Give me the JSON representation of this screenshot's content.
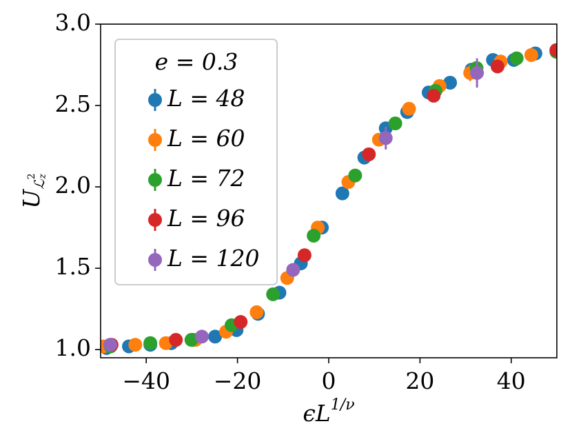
{
  "chart_data": {
    "type": "scatter",
    "xlabel": {
      "base": "ϵL",
      "sup": "1/ν"
    },
    "ylabel": {
      "base": "U",
      "sub": "ℒ",
      "sub_sup": "2",
      "sub_sub": "z"
    },
    "legend_title": "e = 0.3",
    "legend": "upper left",
    "xlim": [
      -50,
      50
    ],
    "ylim": [
      0.95,
      3.0
    ],
    "xticks": [
      {
        "value": -40,
        "label": "−40"
      },
      {
        "value": -20,
        "label": "−20"
      },
      0,
      20,
      40
    ],
    "yticks": [
      {
        "value": 1.0,
        "label": "1.0"
      },
      1.5,
      {
        "value": 2.0,
        "label": "2.0"
      },
      2.5,
      {
        "value": 3.0,
        "label": "3.0"
      }
    ],
    "series": [
      {
        "name": "L = 48",
        "color": "#1f77b4",
        "x": [
          -48.7,
          -43.8,
          -39.1,
          -34.5,
          -29.7,
          -24.9,
          -20.2,
          -15.5,
          -10.8,
          -6.1,
          -1.5,
          3.0,
          7.8,
          12.5,
          17.2,
          21.9,
          26.6,
          31.3,
          36.0,
          40.6,
          45.3,
          49.9
        ],
        "values": [
          1.01,
          1.02,
          1.03,
          1.04,
          1.06,
          1.08,
          1.12,
          1.22,
          1.35,
          1.53,
          1.75,
          1.96,
          2.18,
          2.36,
          2.46,
          2.58,
          2.64,
          2.72,
          2.78,
          2.78,
          2.82,
          2.84
        ],
        "errors": [
          0.01,
          0.01,
          0.01,
          0.01,
          0.01,
          0.01,
          0.01,
          0.01,
          0.01,
          0.01,
          0.01,
          0.01,
          0.01,
          0.01,
          0.01,
          0.01,
          0.01,
          0.01,
          0.04,
          0.01,
          0.01,
          0.01
        ]
      },
      {
        "name": "L = 60",
        "color": "#ff7f0e",
        "x": [
          -49.4,
          -42.4,
          -35.7,
          -29.2,
          -22.5,
          -15.8,
          -9.1,
          -2.4,
          4.3,
          11.0,
          17.6,
          24.3,
          31.0,
          37.7,
          44.4
        ],
        "values": [
          1.02,
          1.03,
          1.04,
          1.06,
          1.11,
          1.23,
          1.44,
          1.75,
          2.03,
          2.29,
          2.48,
          2.62,
          2.7,
          2.77,
          2.81
        ],
        "errors": [
          0.01,
          0.01,
          0.01,
          0.01,
          0.01,
          0.01,
          0.01,
          0.01,
          0.01,
          0.01,
          0.01,
          0.01,
          0.05,
          0.01,
          0.01
        ]
      },
      {
        "name": "L = 72",
        "color": "#2ca02c",
        "x": [
          -47.8,
          -39.1,
          -30.1,
          -21.3,
          -12.2,
          -3.3,
          5.8,
          14.6,
          23.4,
          32.4,
          41.2,
          49.9
        ],
        "values": [
          1.02,
          1.04,
          1.06,
          1.15,
          1.34,
          1.7,
          2.07,
          2.39,
          2.59,
          2.73,
          2.79,
          2.83
        ],
        "errors": [
          0.01,
          0.01,
          0.01,
          0.01,
          0.01,
          0.01,
          0.01,
          0.01,
          0.01,
          0.01,
          0.01,
          0.01
        ]
      },
      {
        "name": "L = 96",
        "color": "#d62728",
        "x": [
          -47.6,
          -33.5,
          -19.3,
          -5.3,
          8.8,
          23.0,
          37.0,
          49.9
        ],
        "values": [
          1.03,
          1.06,
          1.17,
          1.58,
          2.2,
          2.56,
          2.74,
          2.84
        ],
        "errors": [
          0.01,
          0.01,
          0.01,
          0.01,
          0.01,
          0.01,
          0.04,
          0.01
        ]
      },
      {
        "name": "L = 120",
        "color": "#9467bd",
        "x": [
          -47.9,
          -27.8,
          -7.8,
          12.5,
          32.5
        ],
        "values": [
          1.03,
          1.08,
          1.49,
          2.3,
          2.7
        ],
        "errors": [
          0.01,
          0.01,
          0.03,
          0.07,
          0.09
        ]
      }
    ]
  }
}
